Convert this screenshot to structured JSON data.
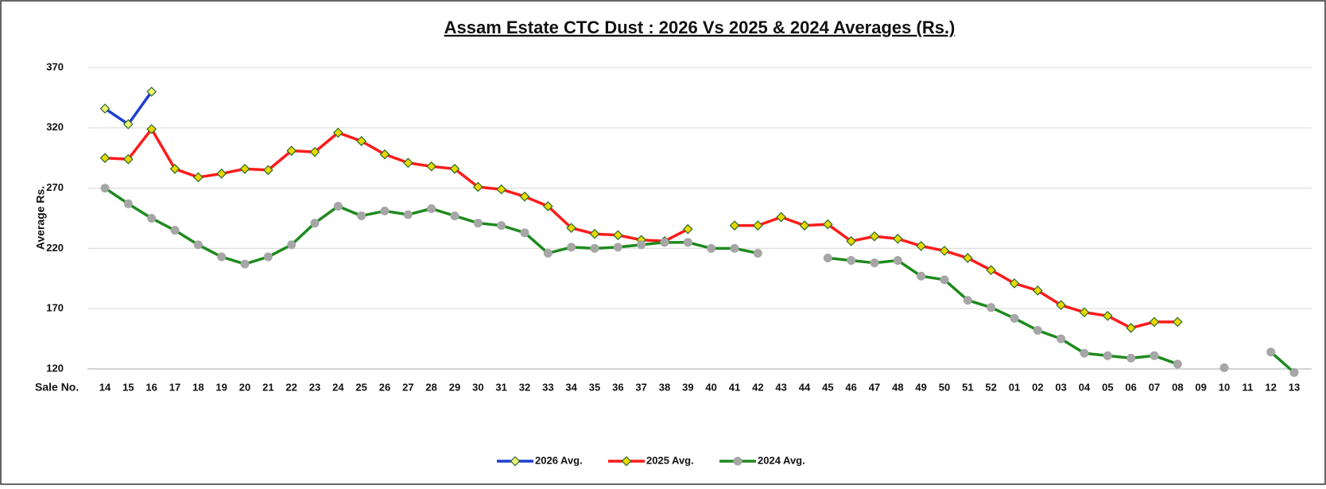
{
  "chart_data": {
    "type": "line",
    "title": "Assam Estate CTC Dust : 2026 Vs 2025 & 2024 Averages (Rs.)",
    "y_label": "Average Rs.",
    "x_label": "Sale No.",
    "categories": [
      "14",
      "15",
      "16",
      "17",
      "18",
      "19",
      "20",
      "21",
      "22",
      "23",
      "24",
      "25",
      "26",
      "27",
      "28",
      "29",
      "30",
      "31",
      "32",
      "33",
      "34",
      "35",
      "36",
      "37",
      "38",
      "39",
      "40",
      "41",
      "42",
      "43",
      "44",
      "45",
      "46",
      "47",
      "48",
      "49",
      "50",
      "51",
      "52",
      "01",
      "02",
      "03",
      "04",
      "05",
      "06",
      "07",
      "08",
      "09",
      "10",
      "11",
      "12",
      "13"
    ],
    "ylim": [
      120,
      370
    ],
    "yticks": [
      120,
      170,
      220,
      270,
      320,
      370
    ],
    "grid": true,
    "legend": "bottom",
    "series": [
      {
        "name": "2026 Avg.",
        "color": "#1f3fd0",
        "marker_color": "#f2f27a",
        "marker": "diamond",
        "values": [
          336,
          323,
          350,
          null,
          null,
          null,
          null,
          null,
          null,
          null,
          null,
          null,
          null,
          null,
          null,
          null,
          null,
          null,
          null,
          null,
          null,
          null,
          null,
          null,
          null,
          null,
          null,
          null,
          null,
          null,
          null,
          null,
          null,
          null,
          null,
          null,
          null,
          null,
          null,
          null,
          null,
          null,
          null,
          null,
          null,
          null,
          null,
          null,
          null,
          null,
          null,
          null
        ]
      },
      {
        "name": "2025 Avg.",
        "color": "#ff1a1a",
        "marker_color": "#e8d800",
        "marker": "diamond",
        "values": [
          295,
          294,
          319,
          286,
          279,
          282,
          286,
          285,
          301,
          300,
          316,
          309,
          298,
          291,
          288,
          286,
          271,
          269,
          263,
          255,
          237,
          232,
          231,
          227,
          226,
          236,
          null,
          239,
          239,
          246,
          239,
          240,
          226,
          230,
          228,
          222,
          218,
          212,
          202,
          191,
          185,
          173,
          167,
          164,
          154,
          159,
          159,
          null,
          null,
          null,
          null,
          null
        ]
      },
      {
        "name": "2024 Avg.",
        "color": "#1e8a1e",
        "marker_color": "#a6a6a6",
        "marker": "circle",
        "values": [
          270,
          257,
          245,
          235,
          223,
          213,
          207,
          213,
          223,
          241,
          255,
          247,
          251,
          248,
          253,
          247,
          241,
          239,
          233,
          216,
          221,
          220,
          221,
          223,
          225,
          225,
          220,
          220,
          216,
          null,
          null,
          212,
          210,
          208,
          210,
          197,
          194,
          177,
          171,
          162,
          152,
          145,
          133,
          131,
          129,
          131,
          124,
          null,
          121,
          null,
          134,
          117
        ]
      }
    ]
  }
}
